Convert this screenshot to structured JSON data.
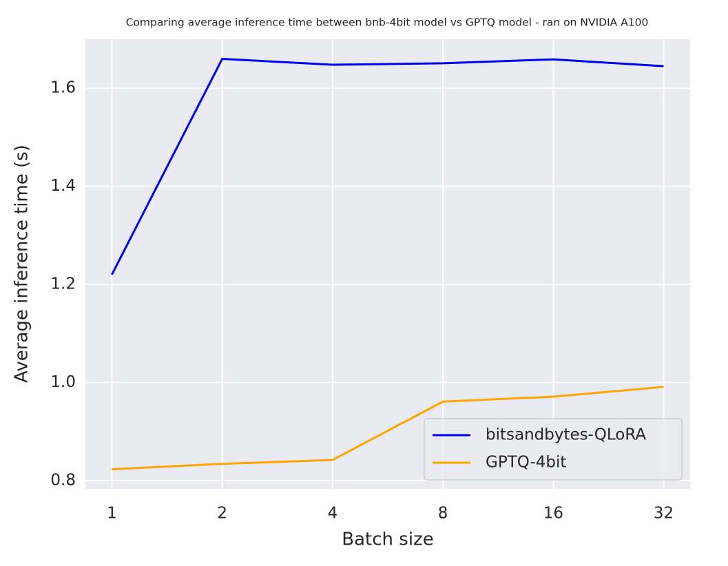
{
  "chart_data": {
    "type": "line",
    "title": "Comparing  average inference time between bnb-4bit model vs GPTQ model - ran on NVIDIA A100",
    "x_label": "Batch size",
    "y_label": "Average inference time (s)",
    "categories": [
      "1",
      "2",
      "4",
      "8",
      "16",
      "32"
    ],
    "series": [
      {
        "name": "bitsandbytes-QLoRA",
        "color": "#0000ee",
        "values": [
          1.22,
          1.66,
          1.648,
          1.651,
          1.659,
          1.645
        ]
      },
      {
        "name": "GPTQ-4bit",
        "color": "#ffa500",
        "values": [
          0.823,
          0.834,
          0.842,
          0.961,
          0.971,
          0.991
        ]
      }
    ],
    "ylim": [
      0.783,
      1.7
    ],
    "yticks": [
      0.8,
      {
        "value": 1,
        "label": "1.0"
      },
      1.2,
      1.4,
      1.6
    ],
    "grid": true,
    "legend": "lower right"
  }
}
